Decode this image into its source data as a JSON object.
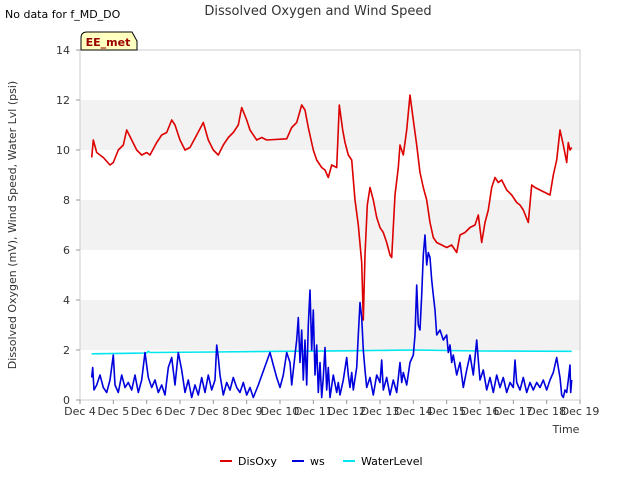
{
  "header": {
    "nodata": "No data for f_MD_DO",
    "badge": "EE_met"
  },
  "chart_data": {
    "type": "line",
    "title": "Dissolved Oxygen and Wind Speed",
    "xlabel": "Time",
    "ylabel": "Dissolved Oxygen (mV), Wind Speed, Water Lvl (psi)",
    "xlim": [
      4,
      19
    ],
    "ylim": [
      0,
      14
    ],
    "x_ticks": [
      4,
      5,
      6,
      7,
      8,
      9,
      10,
      11,
      12,
      13,
      14,
      15,
      16,
      17,
      18,
      19
    ],
    "x_tick_labels": [
      "Dec 4",
      "Dec 5",
      "Dec 6",
      "Dec 7",
      "Dec 8",
      "Dec 9",
      "Dec 10",
      "Dec 11",
      "Dec 12",
      "Dec 13",
      "Dec 14",
      "Dec 15",
      "Dec 16",
      "Dec 17",
      "Dec 18",
      "Dec 19"
    ],
    "y_ticks": [
      0,
      2,
      4,
      6,
      8,
      10,
      12,
      14
    ],
    "y_tick_labels": [
      "0",
      "2",
      "4",
      "6",
      "8",
      "10",
      "12",
      "14"
    ],
    "grid": "horizontal bands",
    "legend_position": "bottom",
    "series": [
      {
        "name": "DisOxy",
        "color": "#dd0000",
        "points": [
          [
            4.35,
            9.7
          ],
          [
            4.4,
            10.4
          ],
          [
            4.5,
            9.9
          ],
          [
            4.7,
            9.7
          ],
          [
            4.9,
            9.4
          ],
          [
            5.0,
            9.5
          ],
          [
            5.15,
            10.0
          ],
          [
            5.3,
            10.2
          ],
          [
            5.4,
            10.8
          ],
          [
            5.55,
            10.4
          ],
          [
            5.7,
            10.0
          ],
          [
            5.85,
            9.8
          ],
          [
            6.0,
            9.9
          ],
          [
            6.1,
            9.8
          ],
          [
            6.3,
            10.3
          ],
          [
            6.45,
            10.6
          ],
          [
            6.6,
            10.7
          ],
          [
            6.75,
            11.2
          ],
          [
            6.85,
            11.0
          ],
          [
            7.0,
            10.4
          ],
          [
            7.15,
            10.0
          ],
          [
            7.3,
            10.1
          ],
          [
            7.5,
            10.6
          ],
          [
            7.7,
            11.1
          ],
          [
            7.85,
            10.4
          ],
          [
            8.0,
            10.0
          ],
          [
            8.15,
            9.8
          ],
          [
            8.3,
            10.2
          ],
          [
            8.45,
            10.5
          ],
          [
            8.6,
            10.7
          ],
          [
            8.75,
            11.0
          ],
          [
            8.85,
            11.7
          ],
          [
            9.0,
            11.2
          ],
          [
            9.1,
            10.8
          ],
          [
            9.3,
            10.4
          ],
          [
            9.45,
            10.5
          ],
          [
            9.6,
            10.4
          ],
          [
            10.2,
            10.45
          ],
          [
            10.35,
            10.9
          ],
          [
            10.5,
            11.1
          ],
          [
            10.65,
            11.8
          ],
          [
            10.75,
            11.6
          ],
          [
            10.85,
            10.9
          ],
          [
            11.0,
            10.0
          ],
          [
            11.1,
            9.6
          ],
          [
            11.25,
            9.3
          ],
          [
            11.35,
            9.2
          ],
          [
            11.45,
            8.9
          ],
          [
            11.55,
            9.4
          ],
          [
            11.7,
            9.3
          ],
          [
            11.78,
            11.8
          ],
          [
            11.88,
            10.8
          ],
          [
            11.95,
            10.3
          ],
          [
            12.05,
            9.8
          ],
          [
            12.15,
            9.6
          ],
          [
            12.25,
            8.0
          ],
          [
            12.35,
            7.0
          ],
          [
            12.45,
            5.5
          ],
          [
            12.5,
            3.2
          ],
          [
            12.55,
            5.8
          ],
          [
            12.62,
            7.8
          ],
          [
            12.7,
            8.5
          ],
          [
            12.8,
            8.0
          ],
          [
            12.9,
            7.3
          ],
          [
            13.0,
            6.9
          ],
          [
            13.1,
            6.7
          ],
          [
            13.2,
            6.3
          ],
          [
            13.3,
            5.8
          ],
          [
            13.35,
            5.7
          ],
          [
            13.45,
            8.2
          ],
          [
            13.55,
            9.3
          ],
          [
            13.6,
            10.2
          ],
          [
            13.7,
            9.8
          ],
          [
            13.8,
            10.8
          ],
          [
            13.9,
            12.2
          ],
          [
            14.0,
            11.2
          ],
          [
            14.1,
            10.2
          ],
          [
            14.2,
            9.1
          ],
          [
            14.3,
            8.5
          ],
          [
            14.4,
            8.0
          ],
          [
            14.5,
            7.1
          ],
          [
            14.6,
            6.5
          ],
          [
            14.7,
            6.3
          ],
          [
            14.85,
            6.2
          ],
          [
            15.0,
            6.1
          ],
          [
            15.15,
            6.2
          ],
          [
            15.3,
            5.9
          ],
          [
            15.4,
            6.6
          ],
          [
            15.55,
            6.7
          ],
          [
            15.7,
            6.9
          ],
          [
            15.85,
            7.0
          ],
          [
            15.95,
            7.4
          ],
          [
            16.05,
            6.3
          ],
          [
            16.15,
            7.1
          ],
          [
            16.25,
            7.6
          ],
          [
            16.35,
            8.5
          ],
          [
            16.45,
            8.9
          ],
          [
            16.55,
            8.7
          ],
          [
            16.65,
            8.8
          ],
          [
            16.8,
            8.4
          ],
          [
            16.95,
            8.2
          ],
          [
            17.1,
            7.9
          ],
          [
            17.2,
            7.8
          ],
          [
            17.3,
            7.6
          ],
          [
            17.45,
            7.1
          ],
          [
            17.55,
            8.6
          ],
          [
            17.65,
            8.5
          ],
          [
            17.8,
            8.4
          ],
          [
            17.95,
            8.3
          ],
          [
            18.1,
            8.2
          ],
          [
            18.2,
            9.0
          ],
          [
            18.3,
            9.6
          ],
          [
            18.4,
            10.8
          ],
          [
            18.5,
            10.2
          ],
          [
            18.6,
            9.5
          ],
          [
            18.65,
            10.3
          ],
          [
            18.7,
            10.0
          ],
          [
            18.75,
            10.1
          ]
        ]
      },
      {
        "name": "ws",
        "color": "#0000dd",
        "points": [
          [
            4.35,
            0.9
          ],
          [
            4.38,
            1.3
          ],
          [
            4.42,
            0.4
          ],
          [
            4.5,
            0.6
          ],
          [
            4.6,
            1.0
          ],
          [
            4.7,
            0.5
          ],
          [
            4.8,
            0.3
          ],
          [
            4.9,
            0.8
          ],
          [
            5.0,
            1.8
          ],
          [
            5.05,
            0.6
          ],
          [
            5.15,
            0.3
          ],
          [
            5.25,
            1.0
          ],
          [
            5.35,
            0.5
          ],
          [
            5.45,
            0.7
          ],
          [
            5.55,
            0.4
          ],
          [
            5.65,
            1.0
          ],
          [
            5.75,
            0.3
          ],
          [
            5.85,
            0.8
          ],
          [
            5.95,
            1.9
          ],
          [
            6.05,
            0.9
          ],
          [
            6.15,
            0.5
          ],
          [
            6.25,
            0.8
          ],
          [
            6.35,
            0.3
          ],
          [
            6.45,
            0.6
          ],
          [
            6.55,
            0.2
          ],
          [
            6.65,
            1.3
          ],
          [
            6.75,
            1.7
          ],
          [
            6.85,
            0.6
          ],
          [
            6.95,
            1.9
          ],
          [
            7.05,
            1.2
          ],
          [
            7.15,
            0.3
          ],
          [
            7.25,
            0.8
          ],
          [
            7.35,
            0.1
          ],
          [
            7.45,
            0.6
          ],
          [
            7.55,
            0.2
          ],
          [
            7.65,
            0.9
          ],
          [
            7.75,
            0.3
          ],
          [
            7.85,
            1.0
          ],
          [
            7.95,
            0.4
          ],
          [
            8.05,
            0.8
          ],
          [
            8.1,
            2.2
          ],
          [
            8.15,
            1.7
          ],
          [
            8.2,
            1.0
          ],
          [
            8.3,
            0.2
          ],
          [
            8.4,
            0.7
          ],
          [
            8.5,
            0.4
          ],
          [
            8.6,
            0.9
          ],
          [
            8.7,
            0.5
          ],
          [
            8.8,
            0.3
          ],
          [
            8.9,
            0.7
          ],
          [
            9.0,
            0.2
          ],
          [
            9.1,
            0.5
          ],
          [
            9.2,
            0.1
          ],
          [
            9.35,
            0.6
          ],
          [
            9.7,
            1.9
          ],
          [
            9.8,
            1.4
          ],
          [
            9.9,
            0.9
          ],
          [
            10.0,
            0.5
          ],
          [
            10.1,
            1.0
          ],
          [
            10.2,
            1.9
          ],
          [
            10.3,
            1.5
          ],
          [
            10.35,
            0.6
          ],
          [
            10.45,
            1.8
          ],
          [
            10.5,
            2.4
          ],
          [
            10.55,
            3.3
          ],
          [
            10.6,
            1.5
          ],
          [
            10.65,
            2.8
          ],
          [
            10.7,
            0.8
          ],
          [
            10.75,
            2.4
          ],
          [
            10.8,
            0.6
          ],
          [
            10.85,
            3.0
          ],
          [
            10.9,
            4.4
          ],
          [
            10.95,
            2.0
          ],
          [
            11.0,
            3.6
          ],
          [
            11.05,
            1.0
          ],
          [
            11.1,
            2.2
          ],
          [
            11.15,
            0.3
          ],
          [
            11.2,
            1.5
          ],
          [
            11.25,
            0.1
          ],
          [
            11.3,
            0.9
          ],
          [
            11.35,
            2.1
          ],
          [
            11.4,
            0.4
          ],
          [
            11.45,
            1.3
          ],
          [
            11.5,
            0.1
          ],
          [
            11.6,
            1.0
          ],
          [
            11.7,
            0.3
          ],
          [
            11.75,
            0.7
          ],
          [
            11.8,
            0.2
          ],
          [
            11.9,
            0.8
          ],
          [
            12.0,
            1.7
          ],
          [
            12.05,
            1.0
          ],
          [
            12.1,
            0.5
          ],
          [
            12.15,
            1.1
          ],
          [
            12.2,
            0.4
          ],
          [
            12.3,
            1.3
          ],
          [
            12.35,
            2.6
          ],
          [
            12.4,
            3.9
          ],
          [
            12.45,
            3.3
          ],
          [
            12.5,
            2.0
          ],
          [
            12.55,
            1.2
          ],
          [
            12.6,
            0.5
          ],
          [
            12.7,
            0.9
          ],
          [
            12.8,
            0.2
          ],
          [
            12.9,
            1.0
          ],
          [
            13.0,
            0.7
          ],
          [
            13.05,
            1.6
          ],
          [
            13.1,
            0.4
          ],
          [
            13.2,
            0.9
          ],
          [
            13.3,
            0.2
          ],
          [
            13.4,
            0.8
          ],
          [
            13.5,
            0.3
          ],
          [
            13.6,
            1.5
          ],
          [
            13.65,
            0.7
          ],
          [
            13.7,
            1.1
          ],
          [
            13.8,
            0.6
          ],
          [
            13.9,
            1.5
          ],
          [
            14.0,
            1.8
          ],
          [
            14.05,
            2.6
          ],
          [
            14.1,
            4.6
          ],
          [
            14.15,
            3.0
          ],
          [
            14.2,
            2.8
          ],
          [
            14.25,
            4.2
          ],
          [
            14.3,
            5.8
          ],
          [
            14.35,
            6.6
          ],
          [
            14.4,
            5.4
          ],
          [
            14.45,
            5.9
          ],
          [
            14.5,
            5.7
          ],
          [
            14.55,
            4.8
          ],
          [
            14.6,
            4.2
          ],
          [
            14.65,
            3.6
          ],
          [
            14.7,
            2.6
          ],
          [
            14.8,
            2.8
          ],
          [
            14.9,
            2.4
          ],
          [
            15.0,
            2.6
          ],
          [
            15.05,
            1.9
          ],
          [
            15.1,
            2.2
          ],
          [
            15.15,
            1.5
          ],
          [
            15.2,
            1.8
          ],
          [
            15.3,
            1.0
          ],
          [
            15.4,
            1.5
          ],
          [
            15.5,
            0.5
          ],
          [
            15.6,
            1.2
          ],
          [
            15.7,
            1.8
          ],
          [
            15.8,
            1.0
          ],
          [
            15.9,
            2.4
          ],
          [
            15.95,
            1.6
          ],
          [
            16.0,
            0.8
          ],
          [
            16.1,
            1.2
          ],
          [
            16.2,
            0.4
          ],
          [
            16.3,
            0.9
          ],
          [
            16.4,
            0.3
          ],
          [
            16.5,
            1.0
          ],
          [
            16.6,
            0.5
          ],
          [
            16.7,
            0.9
          ],
          [
            16.8,
            0.3
          ],
          [
            16.9,
            0.7
          ],
          [
            17.0,
            0.5
          ],
          [
            17.05,
            1.6
          ],
          [
            17.1,
            0.7
          ],
          [
            17.2,
            0.4
          ],
          [
            17.3,
            0.9
          ],
          [
            17.4,
            0.3
          ],
          [
            17.5,
            0.7
          ],
          [
            17.6,
            0.4
          ],
          [
            17.7,
            0.7
          ],
          [
            17.8,
            0.5
          ],
          [
            17.9,
            0.8
          ],
          [
            18.0,
            0.4
          ],
          [
            18.1,
            0.8
          ],
          [
            18.2,
            1.1
          ],
          [
            18.3,
            1.7
          ],
          [
            18.35,
            1.3
          ],
          [
            18.4,
            0.9
          ],
          [
            18.45,
            0.2
          ],
          [
            18.5,
            0.1
          ],
          [
            18.55,
            0.4
          ],
          [
            18.6,
            0.3
          ],
          [
            18.65,
            0.8
          ],
          [
            18.7,
            1.4
          ],
          [
            18.72,
            0.3
          ],
          [
            18.75,
            0.8
          ]
        ]
      },
      {
        "name": "WaterLevel",
        "color": "#00e5ee",
        "points": [
          [
            4.35,
            1.85
          ],
          [
            6.0,
            1.88
          ],
          [
            6.05,
            1.95
          ],
          [
            6.1,
            1.9
          ],
          [
            8.0,
            1.92
          ],
          [
            10.0,
            1.95
          ],
          [
            12.0,
            1.97
          ],
          [
            14.0,
            2.0
          ],
          [
            16.0,
            1.96
          ],
          [
            18.75,
            1.95
          ]
        ]
      }
    ]
  }
}
